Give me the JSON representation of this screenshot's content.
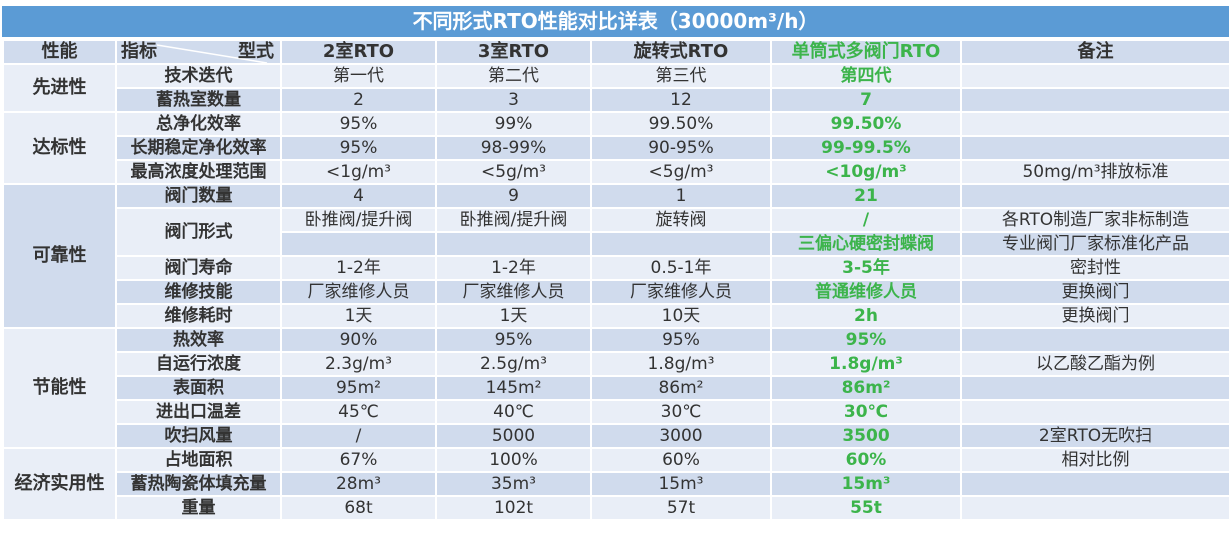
{
  "title": "不同形式RTO性能对比详表（30000m³/h）",
  "header": {
    "category": "性能",
    "indicator": "指标",
    "type": "型式",
    "cols": [
      "2室RTO",
      "3室RTO",
      "旋转式RTO",
      "单筒式多阀门RTO",
      "备注"
    ]
  },
  "groups": [
    {
      "name": "先进性",
      "bg": "L",
      "rows": [
        {
          "label": "技术迭代",
          "bg": "L",
          "values": [
            "第一代",
            "第二代",
            "第三代",
            "第四代",
            ""
          ]
        },
        {
          "label": "蓄热室数量",
          "bg": "D",
          "values": [
            "2",
            "3",
            "12",
            "7",
            ""
          ]
        }
      ]
    },
    {
      "name": "达标性",
      "bg": "L",
      "rows": [
        {
          "label": "总净化效率",
          "bg": "L",
          "values": [
            "95%",
            "99%",
            "99.50%",
            "99.50%",
            ""
          ]
        },
        {
          "label": "长期稳定净化效率",
          "bg": "D",
          "values": [
            "95%",
            "98-99%",
            "90-95%",
            "99-99.5%",
            ""
          ]
        },
        {
          "label": "最高浓度处理范围",
          "bg": "L",
          "values": [
            "<1g/m³",
            "<5g/m³",
            "<5g/m³",
            "<10g/m³",
            "50mg/m³排放标准"
          ]
        }
      ]
    },
    {
      "name": "可靠性",
      "bg": "D",
      "rows": [
        {
          "label": "阀门数量",
          "bg": "D",
          "values": [
            "4",
            "9",
            "1",
            "21",
            ""
          ]
        },
        {
          "label": "阀门形式",
          "bg": "L",
          "values": [
            "卧推阀/提升阀",
            "卧推阀/提升阀",
            "旋转阀",
            "/",
            "各RTO制造厂家非标制造"
          ],
          "sub": {
            "bg": "D",
            "values": [
              "",
              "",
              "",
              "三偏心硬密封蝶阀",
              "专业阀门厂家标准化产品"
            ]
          }
        },
        {
          "label": "阀门寿命",
          "bg": "L",
          "values": [
            "1-2年",
            "1-2年",
            "0.5-1年",
            "3-5年",
            "密封性"
          ]
        },
        {
          "label": "维修技能",
          "bg": "D",
          "values": [
            "厂家维修人员",
            "厂家维修人员",
            "厂家维修人员",
            "普通维修人员",
            "更换阀门"
          ]
        },
        {
          "label": "维修耗时",
          "bg": "L",
          "values": [
            "1天",
            "1天",
            "10天",
            "2h",
            "更换阀门"
          ]
        }
      ]
    },
    {
      "name": "节能性",
      "bg": "L",
      "rows": [
        {
          "label": "热效率",
          "bg": "D",
          "values": [
            "90%",
            "95%",
            "95%",
            "95%",
            ""
          ]
        },
        {
          "label": "自运行浓度",
          "bg": "L",
          "values": [
            "2.3g/m³",
            "2.5g/m³",
            "1.8g/m³",
            "1.8g/m³",
            "以乙酸乙酯为例"
          ]
        },
        {
          "label": "表面积",
          "bg": "D",
          "values": [
            "95m²",
            "145m²",
            "86m²",
            "86m²",
            ""
          ]
        },
        {
          "label": "进出口温差",
          "bg": "L",
          "values": [
            "45℃",
            "40℃",
            "30℃",
            "30℃",
            ""
          ]
        },
        {
          "label": "吹扫风量",
          "bg": "D",
          "values": [
            "/",
            "5000",
            "3000",
            "3500",
            "2室RTO无吹扫"
          ]
        }
      ]
    },
    {
      "name": "经济实用性",
      "bg": "L",
      "rows": [
        {
          "label": "占地面积",
          "bg": "L",
          "values": [
            "67%",
            "100%",
            "60%",
            "60%",
            "相对比例"
          ]
        },
        {
          "label": "蓄热陶瓷体填充量",
          "bg": "D",
          "values": [
            "28m³",
            "35m³",
            "15m³",
            "15m³",
            ""
          ]
        },
        {
          "label": "重量",
          "bg": "L",
          "values": [
            "68t",
            "102t",
            "57t",
            "55t",
            ""
          ]
        }
      ]
    }
  ],
  "colors": {
    "title_bg": "#5b9bd5",
    "highlight": "#3cb44b",
    "row_light": "#e9eef7",
    "row_dark": "#d0dbed"
  }
}
